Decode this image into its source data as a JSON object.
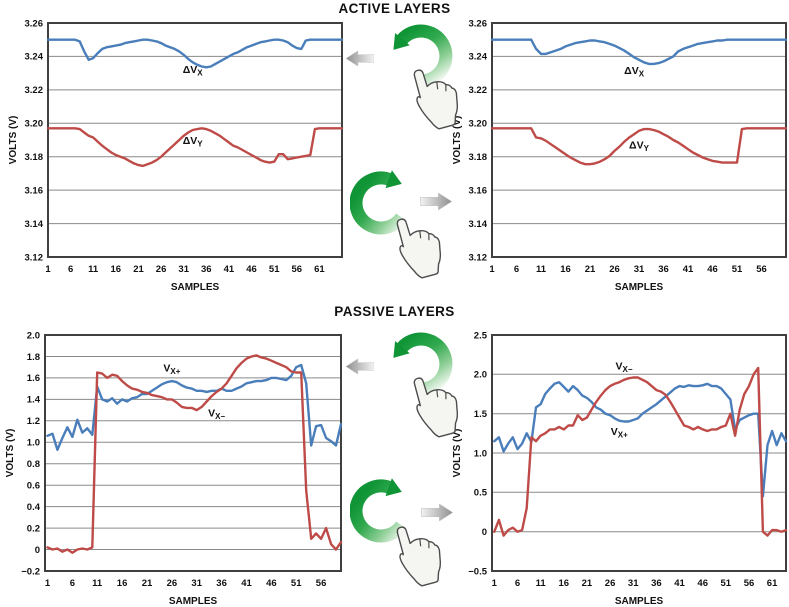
{
  "figure": {
    "grid_color": "#8a8a8a",
    "border_color": "#3f3f3f",
    "series_colors": {
      "blue": "#4a7ebb",
      "red": "#be4b48"
    },
    "accent_green": "#0f9436",
    "arrow_gray": "#8f8f8f"
  },
  "sections": {
    "active": {
      "title": "ACTIVE LAYERS"
    },
    "passive": {
      "title": "PASSIVE LAYERS"
    }
  },
  "icons": {
    "rotate_ccw": "↺",
    "rotate_cw": "↻",
    "arrow_left": "←",
    "arrow_right": "→",
    "pointing_hand": "☝"
  },
  "chart_data": [
    {
      "id": "active_left",
      "type": "line",
      "title_group": "ACTIVE LAYERS",
      "xlabel": "SAMPLES",
      "ylabel": "VOLTS (V)",
      "xlim": [
        1,
        66
      ],
      "ylim": [
        3.12,
        3.26
      ],
      "x_first": 1,
      "xticks": [
        1,
        6,
        11,
        16,
        21,
        26,
        31,
        36,
        41,
        46,
        51,
        56,
        61
      ],
      "yticks": [
        {
          "value": 3.26,
          "label": "3.26"
        },
        {
          "value": 3.24,
          "label": "3.24"
        },
        {
          "value": 3.22,
          "label": "3.22"
        },
        {
          "value": 3.2,
          "label": "3.20"
        },
        {
          "value": 3.18,
          "label": "3.18"
        },
        {
          "value": 3.16,
          "label": "3.16"
        },
        {
          "value": 3.14,
          "label": "3.14"
        },
        {
          "value": 3.12,
          "label": "3.12"
        }
      ],
      "series": [
        {
          "name": "ΔVX",
          "color_key": "blue",
          "values": [
            3.25,
            3.25,
            3.25,
            3.25,
            3.25,
            3.25,
            3.25,
            3.249,
            3.243,
            3.238,
            3.239,
            3.242,
            3.2445,
            3.2455,
            3.246,
            3.2465,
            3.247,
            3.248,
            3.2485,
            3.249,
            3.2495,
            3.25,
            3.25,
            3.2495,
            3.249,
            3.248,
            3.2465,
            3.2455,
            3.2445,
            3.243,
            3.241,
            3.2385,
            3.2365,
            3.235,
            3.234,
            3.2335,
            3.234,
            3.2355,
            3.237,
            3.2385,
            3.24,
            3.2415,
            3.2425,
            3.244,
            3.2455,
            3.2465,
            3.2475,
            3.2485,
            3.249,
            3.2495,
            3.25,
            3.25,
            3.2495,
            3.2485,
            3.2465,
            3.245,
            3.2445,
            3.2495,
            3.25,
            3.25,
            3.25,
            3.25,
            3.25,
            3.25,
            3.25,
            3.25
          ]
        },
        {
          "name": "ΔVY",
          "color_key": "red",
          "values": [
            3.197,
            3.197,
            3.197,
            3.197,
            3.197,
            3.197,
            3.197,
            3.1965,
            3.1945,
            3.1925,
            3.1915,
            3.189,
            3.1865,
            3.1845,
            3.1825,
            3.181,
            3.18,
            3.179,
            3.1775,
            3.176,
            3.175,
            3.1745,
            3.1755,
            3.1765,
            3.178,
            3.18,
            3.1825,
            3.185,
            3.1875,
            3.19,
            3.1925,
            3.1945,
            3.196,
            3.1965,
            3.197,
            3.1965,
            3.1955,
            3.194,
            3.1925,
            3.1905,
            3.1885,
            3.1865,
            3.1855,
            3.184,
            3.1825,
            3.181,
            3.1795,
            3.178,
            3.177,
            3.1765,
            3.177,
            3.1815,
            3.1815,
            3.1785,
            3.179,
            3.1795,
            3.18,
            3.1805,
            3.181,
            3.1965,
            3.197,
            3.197,
            3.197,
            3.197,
            3.197,
            3.197
          ]
        }
      ],
      "annotations": [
        {
          "text": "ΔV",
          "sub": "X",
          "x": 33,
          "y": 3.23
        },
        {
          "text": "ΔV",
          "sub": "Y",
          "x": 33,
          "y": 3.1875
        }
      ]
    },
    {
      "id": "active_right",
      "type": "line",
      "title_group": "ACTIVE LAYERS",
      "xlabel": "SAMPLES",
      "ylabel": "VOLTS (V)",
      "xlim": [
        1,
        61
      ],
      "ylim": [
        3.12,
        3.26
      ],
      "x_first": 1,
      "xticks": [
        1,
        6,
        11,
        16,
        21,
        26,
        31,
        36,
        41,
        46,
        51,
        56
      ],
      "yticks": [
        {
          "value": 3.26,
          "label": "3.26"
        },
        {
          "value": 3.24,
          "label": "3.24"
        },
        {
          "value": 3.22,
          "label": "3.22"
        },
        {
          "value": 3.2,
          "label": "3.20"
        },
        {
          "value": 3.18,
          "label": "3.18"
        },
        {
          "value": 3.16,
          "label": "3.16"
        },
        {
          "value": 3.14,
          "label": "3.14"
        },
        {
          "value": 3.12,
          "label": "3.12"
        }
      ],
      "series": [
        {
          "name": "ΔVX",
          "color_key": "blue",
          "values": [
            3.25,
            3.25,
            3.25,
            3.25,
            3.25,
            3.25,
            3.25,
            3.25,
            3.25,
            3.2445,
            3.2415,
            3.2415,
            3.2425,
            3.2435,
            3.2445,
            3.246,
            3.247,
            3.248,
            3.2485,
            3.249,
            3.2495,
            3.2495,
            3.249,
            3.2485,
            3.2475,
            3.2465,
            3.245,
            3.2435,
            3.2415,
            3.2395,
            3.238,
            3.2365,
            3.2355,
            3.2355,
            3.236,
            3.237,
            3.2385,
            3.24,
            3.243,
            3.2445,
            3.2455,
            3.2465,
            3.2475,
            3.248,
            3.2485,
            3.249,
            3.2495,
            3.2495,
            3.25,
            3.25,
            3.25,
            3.25,
            3.25,
            3.25,
            3.25,
            3.25,
            3.25,
            3.25,
            3.25,
            3.25,
            3.25
          ]
        },
        {
          "name": "ΔVY",
          "color_key": "red",
          "values": [
            3.197,
            3.197,
            3.197,
            3.197,
            3.197,
            3.197,
            3.197,
            3.197,
            3.197,
            3.1915,
            3.191,
            3.1895,
            3.1875,
            3.1855,
            3.1835,
            3.1815,
            3.1795,
            3.178,
            3.1765,
            3.1755,
            3.1755,
            3.176,
            3.177,
            3.1785,
            3.1805,
            3.1835,
            3.186,
            3.189,
            3.1915,
            3.1935,
            3.1955,
            3.1965,
            3.1965,
            3.196,
            3.195,
            3.1935,
            3.192,
            3.19,
            3.1885,
            3.1865,
            3.1845,
            3.1825,
            3.181,
            3.1795,
            3.1785,
            3.1775,
            3.177,
            3.1765,
            3.1765,
            3.1765,
            3.1765,
            3.1965,
            3.197,
            3.197,
            3.197,
            3.197,
            3.197,
            3.197,
            3.197,
            3.197,
            3.197
          ]
        }
      ],
      "annotations": [
        {
          "text": "ΔV",
          "sub": "X",
          "x": 30,
          "y": 3.2295
        },
        {
          "text": "ΔV",
          "sub": "Y",
          "x": 31,
          "y": 3.185
        }
      ]
    },
    {
      "id": "passive_left",
      "type": "line",
      "title_group": "PASSIVE LAYERS",
      "xlabel": "SAMPLES",
      "ylabel": "VOLTS (V)",
      "xlim": [
        0.5,
        60
      ],
      "ylim": [
        -0.2,
        2.0
      ],
      "x_first": 1,
      "xticks": [
        1,
        6,
        11,
        16,
        21,
        26,
        31,
        36,
        41,
        46,
        51,
        56
      ],
      "yticks": [
        {
          "value": 2.0,
          "label": "2.0"
        },
        {
          "value": 1.8,
          "label": "1.8"
        },
        {
          "value": 1.6,
          "label": "1.6"
        },
        {
          "value": 1.4,
          "label": "1.4"
        },
        {
          "value": 1.2,
          "label": "1.2"
        },
        {
          "value": 1.0,
          "label": "1.0"
        },
        {
          "value": 0.8,
          "label": "0.8"
        },
        {
          "value": 0.6,
          "label": "0.6"
        },
        {
          "value": 0.4,
          "label": "0.4"
        },
        {
          "value": 0.2,
          "label": "0.2"
        },
        {
          "value": 0,
          "label": "0"
        },
        {
          "value": -0.2,
          "label": "−0.2"
        }
      ],
      "series": [
        {
          "name": "VX+",
          "color_key": "blue",
          "values": [
            1.06,
            1.08,
            0.93,
            1.04,
            1.14,
            1.05,
            1.21,
            1.09,
            1.13,
            1.07,
            1.52,
            1.4,
            1.38,
            1.41,
            1.36,
            1.4,
            1.38,
            1.41,
            1.42,
            1.45,
            1.45,
            1.48,
            1.51,
            1.54,
            1.56,
            1.57,
            1.56,
            1.53,
            1.51,
            1.5,
            1.48,
            1.48,
            1.47,
            1.48,
            1.48,
            1.5,
            1.48,
            1.48,
            1.5,
            1.52,
            1.55,
            1.56,
            1.57,
            1.57,
            1.58,
            1.6,
            1.6,
            1.59,
            1.58,
            1.62,
            1.7,
            1.72,
            1.55,
            0.97,
            1.15,
            1.16,
            1.04,
            1.01,
            0.97,
            1.17
          ]
        },
        {
          "name": "VX−",
          "color_key": "red",
          "values": [
            0.02,
            0.0,
            0.01,
            -0.02,
            0.0,
            -0.03,
            0.0,
            0.01,
            0.0,
            0.02,
            1.65,
            1.64,
            1.6,
            1.63,
            1.62,
            1.57,
            1.53,
            1.5,
            1.49,
            1.47,
            1.46,
            1.44,
            1.43,
            1.42,
            1.4,
            1.4,
            1.37,
            1.33,
            1.32,
            1.32,
            1.3,
            1.33,
            1.38,
            1.43,
            1.47,
            1.5,
            1.55,
            1.62,
            1.69,
            1.74,
            1.78,
            1.8,
            1.81,
            1.79,
            1.78,
            1.76,
            1.74,
            1.72,
            1.7,
            1.66,
            1.65,
            1.65,
            0.55,
            0.1,
            0.15,
            0.1,
            0.2,
            0.05,
            0.0,
            0.07
          ]
        }
      ],
      "annotations": [
        {
          "text": "V",
          "sub": "X+",
          "x": 26,
          "y": 1.66
        },
        {
          "text": "V",
          "sub": "X−",
          "x": 35,
          "y": 1.24
        }
      ]
    },
    {
      "id": "passive_right",
      "type": "line",
      "title_group": "PASSIVE LAYERS",
      "xlabel": "SAMPLES",
      "ylabel": "VOLTS (V)",
      "xlim": [
        0.5,
        64
      ],
      "ylim": [
        -0.5,
        2.5
      ],
      "x_first": 1,
      "xticks": [
        1,
        6,
        11,
        16,
        21,
        26,
        31,
        36,
        41,
        46,
        51,
        56,
        61
      ],
      "yticks": [
        {
          "value": 2.5,
          "label": "2.5"
        },
        {
          "value": 2.0,
          "label": "2.0"
        },
        {
          "value": 1.5,
          "label": "1.5"
        },
        {
          "value": 1.0,
          "label": "1.0"
        },
        {
          "value": 0.5,
          "label": "0.5"
        },
        {
          "value": 0,
          "label": "0"
        },
        {
          "value": -0.5,
          "label": "−0.5"
        }
      ],
      "series": [
        {
          "name": "VX+",
          "color_key": "blue",
          "values": [
            1.15,
            1.2,
            1.02,
            1.12,
            1.2,
            1.05,
            1.12,
            1.25,
            1.14,
            1.58,
            1.62,
            1.75,
            1.82,
            1.88,
            1.9,
            1.84,
            1.78,
            1.85,
            1.8,
            1.73,
            1.7,
            1.65,
            1.58,
            1.55,
            1.5,
            1.48,
            1.44,
            1.41,
            1.4,
            1.4,
            1.42,
            1.44,
            1.5,
            1.54,
            1.58,
            1.62,
            1.67,
            1.72,
            1.77,
            1.82,
            1.85,
            1.84,
            1.86,
            1.85,
            1.85,
            1.86,
            1.88,
            1.85,
            1.85,
            1.82,
            1.75,
            1.68,
            1.3,
            1.42,
            1.45,
            1.48,
            1.5,
            1.5,
            0.45,
            1.1,
            1.28,
            1.1,
            1.25,
            1.15
          ]
        },
        {
          "name": "VX−",
          "color_key": "red",
          "values": [
            0.0,
            0.15,
            -0.05,
            0.02,
            0.05,
            0.0,
            0.02,
            0.3,
            1.2,
            1.15,
            1.22,
            1.25,
            1.3,
            1.3,
            1.33,
            1.3,
            1.35,
            1.35,
            1.48,
            1.42,
            1.45,
            1.55,
            1.65,
            1.73,
            1.8,
            1.85,
            1.88,
            1.9,
            1.93,
            1.95,
            1.96,
            1.96,
            1.93,
            1.9,
            1.85,
            1.8,
            1.78,
            1.74,
            1.65,
            1.55,
            1.45,
            1.35,
            1.33,
            1.3,
            1.33,
            1.3,
            1.28,
            1.3,
            1.3,
            1.33,
            1.35,
            1.5,
            1.22,
            1.55,
            1.75,
            1.85,
            2.0,
            2.08,
            0.0,
            -0.05,
            0.02,
            0.02,
            0.0,
            0.02
          ]
        }
      ],
      "annotations": [
        {
          "text": "V",
          "sub": "X−",
          "x": 29,
          "y": 2.06
        },
        {
          "text": "V",
          "sub": "X+",
          "x": 28,
          "y": 1.23
        }
      ]
    }
  ]
}
